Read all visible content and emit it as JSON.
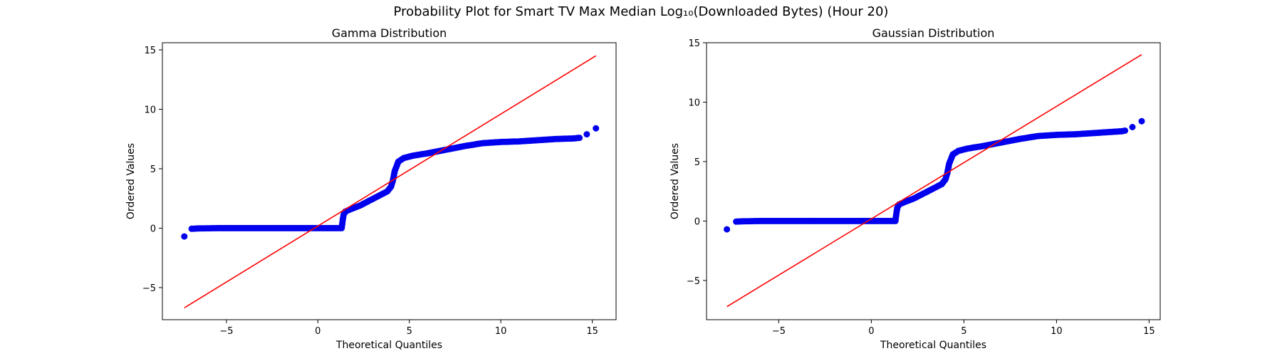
{
  "figure": {
    "suptitle": "Probability Plot for Smart TV Max Median Log₁₀(Downloaded Bytes) (Hour 20)"
  },
  "colors": {
    "points": "#0000ee",
    "fit_line": "#ff0000",
    "axes": "#000000"
  },
  "chart_data": [
    {
      "type": "scatter",
      "title": "Gamma Distribution",
      "xlabel": "Theoretical Quantiles",
      "ylabel": "Ordered Values",
      "xlim": [
        -8.5,
        16.3
      ],
      "ylim": [
        -7.7,
        15.6
      ],
      "xticks": [
        -5,
        0,
        5,
        10,
        15
      ],
      "yticks": [
        -5,
        0,
        5,
        10,
        15
      ],
      "grid": false,
      "fit_line": {
        "x": [
          -7.3,
          15.2
        ],
        "y": [
          -6.7,
          14.5
        ]
      },
      "points": [
        [
          -7.3,
          -0.7
        ],
        [
          -6.9,
          -0.05
        ],
        [
          -6.5,
          -0.02
        ],
        [
          -5.5,
          0.0
        ],
        [
          -4.0,
          0.0
        ],
        [
          -2.0,
          0.0
        ],
        [
          0.0,
          0.0
        ],
        [
          1.0,
          0.0
        ],
        [
          1.3,
          0.0
        ],
        [
          1.35,
          0.6
        ],
        [
          1.4,
          1.1
        ],
        [
          1.5,
          1.4
        ],
        [
          1.8,
          1.6
        ],
        [
          2.3,
          1.9
        ],
        [
          2.8,
          2.3
        ],
        [
          3.3,
          2.7
        ],
        [
          3.8,
          3.1
        ],
        [
          4.0,
          3.5
        ],
        [
          4.1,
          4.0
        ],
        [
          4.2,
          4.8
        ],
        [
          4.4,
          5.6
        ],
        [
          4.7,
          5.9
        ],
        [
          5.2,
          6.1
        ],
        [
          6.0,
          6.3
        ],
        [
          7.0,
          6.6
        ],
        [
          8.0,
          6.9
        ],
        [
          9.0,
          7.15
        ],
        [
          10.0,
          7.25
        ],
        [
          11.0,
          7.3
        ],
        [
          12.0,
          7.4
        ],
        [
          13.0,
          7.5
        ],
        [
          14.0,
          7.55
        ],
        [
          14.3,
          7.6
        ],
        [
          14.7,
          7.9
        ],
        [
          15.2,
          8.4
        ]
      ]
    },
    {
      "type": "scatter",
      "title": "Gaussian Distribution",
      "xlabel": "Theoretical Quantiles",
      "ylabel": "Ordered Values",
      "xlim": [
        -8.9,
        15.6
      ],
      "ylim": [
        -8.3,
        15.0
      ],
      "xticks": [
        -5,
        0,
        5,
        10,
        15
      ],
      "yticks": [
        -5,
        0,
        5,
        10,
        15
      ],
      "grid": false,
      "fit_line": {
        "x": [
          -7.8,
          14.6
        ],
        "y": [
          -7.2,
          14.0
        ]
      },
      "points": [
        [
          -7.8,
          -0.7
        ],
        [
          -7.3,
          -0.05
        ],
        [
          -6.9,
          -0.02
        ],
        [
          -6.0,
          0.0
        ],
        [
          -4.0,
          0.0
        ],
        [
          -2.0,
          0.0
        ],
        [
          0.0,
          0.0
        ],
        [
          1.0,
          0.0
        ],
        [
          1.3,
          0.0
        ],
        [
          1.35,
          0.6
        ],
        [
          1.4,
          1.1
        ],
        [
          1.5,
          1.4
        ],
        [
          1.8,
          1.6
        ],
        [
          2.3,
          1.9
        ],
        [
          2.8,
          2.3
        ],
        [
          3.3,
          2.7
        ],
        [
          3.8,
          3.1
        ],
        [
          4.0,
          3.5
        ],
        [
          4.1,
          4.0
        ],
        [
          4.2,
          4.8
        ],
        [
          4.4,
          5.6
        ],
        [
          4.7,
          5.9
        ],
        [
          5.2,
          6.1
        ],
        [
          6.0,
          6.3
        ],
        [
          7.0,
          6.6
        ],
        [
          8.0,
          6.9
        ],
        [
          9.0,
          7.15
        ],
        [
          10.0,
          7.25
        ],
        [
          11.0,
          7.3
        ],
        [
          12.0,
          7.4
        ],
        [
          13.0,
          7.5
        ],
        [
          13.5,
          7.55
        ],
        [
          13.7,
          7.6
        ],
        [
          14.1,
          7.9
        ],
        [
          14.6,
          8.4
        ]
      ]
    }
  ]
}
